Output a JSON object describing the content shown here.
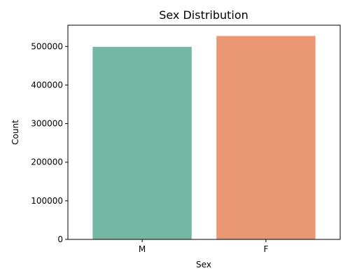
{
  "chart_data": {
    "type": "bar",
    "title": "Sex Distribution",
    "xlabel": "Sex",
    "ylabel": "Count",
    "categories": [
      "M",
      "F"
    ],
    "values": [
      499000,
      527000
    ],
    "ylim": [
      0,
      555000
    ],
    "yticks": [
      0,
      100000,
      200000,
      300000,
      400000,
      500000
    ],
    "ytick_labels": [
      "0",
      "100000",
      "200000",
      "300000",
      "400000",
      "500000"
    ],
    "grid": false,
    "legend": "none",
    "colors": [
      "#74b7a3",
      "#ea9774"
    ]
  }
}
